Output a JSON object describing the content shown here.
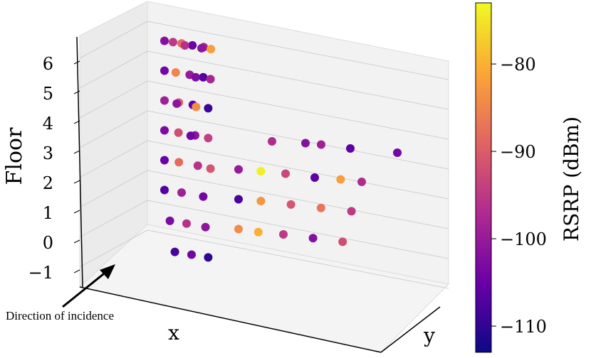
{
  "chart_data": {
    "type": "scatter",
    "projection": "3d",
    "xlabel": "x",
    "ylabel": "y",
    "zlabel": "Floor",
    "z_ticks": [
      "6",
      "5",
      "4",
      "3",
      "2",
      "1",
      "0",
      "−1"
    ],
    "zlim": [
      -1,
      6
    ],
    "grid": true,
    "colorbar": {
      "label": "RSRP (dBm)",
      "ticks": [
        "−80",
        "−90",
        "−100",
        "−110"
      ],
      "tick_values": [
        -80,
        -90,
        -100,
        -110
      ],
      "range": [
        -113,
        -73
      ],
      "colormap": "plasma",
      "colors": [
        "#0d0887",
        "#6a00a8",
        "#b12a90",
        "#e16462",
        "#fca636",
        "#f0f921"
      ]
    },
    "annotation": {
      "text": "Direction of incidence",
      "arrow": "points toward the plot origin from lower-left"
    },
    "series_note": "points are RSRP measurements; color encodes RSRP; helical ring structure on the left (stairwell) and corridor tracks on floors 1-3",
    "points": [
      {
        "floor": 6,
        "x": 0.1,
        "y": 0.05,
        "rsrp": -102
      },
      {
        "floor": 6,
        "x": 0.13,
        "y": 0.06,
        "rsrp": -95
      },
      {
        "floor": 6,
        "x": 0.16,
        "y": 0.07,
        "rsrp": -88
      },
      {
        "floor": 6,
        "x": 0.2,
        "y": 0.07,
        "rsrp": -105
      },
      {
        "floor": 6,
        "x": 0.24,
        "y": 0.08,
        "rsrp": -99
      },
      {
        "floor": 6,
        "x": 0.27,
        "y": 0.06,
        "rsrp": -82
      },
      {
        "floor": 6,
        "x": 0.24,
        "y": 0.03,
        "rsrp": -101
      },
      {
        "floor": 6,
        "x": 0.18,
        "y": 0.02,
        "rsrp": -96
      },
      {
        "floor": 5,
        "x": 0.1,
        "y": 0.05,
        "rsrp": -104
      },
      {
        "floor": 5,
        "x": 0.14,
        "y": 0.06,
        "rsrp": -85
      },
      {
        "floor": 5,
        "x": 0.19,
        "y": 0.07,
        "rsrp": -100
      },
      {
        "floor": 5,
        "x": 0.24,
        "y": 0.07,
        "rsrp": -107
      },
      {
        "floor": 5,
        "x": 0.27,
        "y": 0.05,
        "rsrp": -98
      },
      {
        "floor": 5,
        "x": 0.22,
        "y": 0.02,
        "rsrp": -103
      },
      {
        "floor": 4,
        "x": 0.1,
        "y": 0.05,
        "rsrp": -99
      },
      {
        "floor": 4,
        "x": 0.15,
        "y": 0.07,
        "rsrp": -90
      },
      {
        "floor": 4,
        "x": 0.2,
        "y": 0.08,
        "rsrp": -106
      },
      {
        "floor": 4,
        "x": 0.26,
        "y": 0.06,
        "rsrp": -109
      },
      {
        "floor": 4,
        "x": 0.22,
        "y": 0.03,
        "rsrp": -84
      },
      {
        "floor": 4,
        "x": 0.15,
        "y": 0.02,
        "rsrp": -101
      },
      {
        "floor": 3,
        "x": 0.1,
        "y": 0.05,
        "rsrp": -103
      },
      {
        "floor": 3,
        "x": 0.15,
        "y": 0.06,
        "rsrp": -92
      },
      {
        "floor": 3,
        "x": 0.21,
        "y": 0.07,
        "rsrp": -101
      },
      {
        "floor": 3,
        "x": 0.26,
        "y": 0.06,
        "rsrp": -94
      },
      {
        "floor": 3,
        "x": 0.2,
        "y": 0.03,
        "rsrp": -104
      },
      {
        "floor": 3,
        "x": 0.45,
        "y": 0.35,
        "rsrp": -97
      },
      {
        "floor": 3,
        "x": 0.55,
        "y": 0.5,
        "rsrp": -102
      },
      {
        "floor": 3,
        "x": 0.6,
        "y": 0.55,
        "rsrp": -99
      },
      {
        "floor": 3,
        "x": 0.7,
        "y": 0.6,
        "rsrp": -106
      },
      {
        "floor": 3,
        "x": 0.85,
        "y": 0.75,
        "rsrp": -104
      },
      {
        "floor": 2,
        "x": 0.1,
        "y": 0.05,
        "rsrp": -105
      },
      {
        "floor": 2,
        "x": 0.15,
        "y": 0.07,
        "rsrp": -88
      },
      {
        "floor": 2,
        "x": 0.22,
        "y": 0.07,
        "rsrp": -96
      },
      {
        "floor": 2,
        "x": 0.27,
        "y": 0.05,
        "rsrp": -91
      },
      {
        "floor": 2,
        "x": 0.35,
        "y": 0.2,
        "rsrp": -100
      },
      {
        "floor": 2,
        "x": 0.42,
        "y": 0.28,
        "rsrp": -74
      },
      {
        "floor": 2,
        "x": 0.5,
        "y": 0.35,
        "rsrp": -93
      },
      {
        "floor": 2,
        "x": 0.6,
        "y": 0.4,
        "rsrp": -106
      },
      {
        "floor": 2,
        "x": 0.68,
        "y": 0.5,
        "rsrp": -82
      },
      {
        "floor": 2,
        "x": 0.75,
        "y": 0.55,
        "rsrp": -97
      },
      {
        "floor": 1,
        "x": 0.1,
        "y": 0.05,
        "rsrp": -107
      },
      {
        "floor": 1,
        "x": 0.16,
        "y": 0.07,
        "rsrp": -99
      },
      {
        "floor": 1,
        "x": 0.24,
        "y": 0.07,
        "rsrp": -104
      },
      {
        "floor": 1,
        "x": 0.35,
        "y": 0.2,
        "rsrp": -108
      },
      {
        "floor": 1,
        "x": 0.42,
        "y": 0.28,
        "rsrp": -83
      },
      {
        "floor": 1,
        "x": 0.52,
        "y": 0.35,
        "rsrp": -91
      },
      {
        "floor": 1,
        "x": 0.62,
        "y": 0.42,
        "rsrp": -87
      },
      {
        "floor": 1,
        "x": 0.72,
        "y": 0.5,
        "rsrp": -95
      },
      {
        "floor": 0,
        "x": 0.12,
        "y": 0.05,
        "rsrp": -103
      },
      {
        "floor": 0,
        "x": 0.18,
        "y": 0.06,
        "rsrp": -96
      },
      {
        "floor": 0,
        "x": 0.25,
        "y": 0.06,
        "rsrp": -101
      },
      {
        "floor": 0,
        "x": 0.35,
        "y": 0.2,
        "rsrp": -84
      },
      {
        "floor": 0,
        "x": 0.42,
        "y": 0.22,
        "rsrp": -80
      },
      {
        "floor": 0,
        "x": 0.5,
        "y": 0.3,
        "rsrp": -95
      },
      {
        "floor": 0,
        "x": 0.6,
        "y": 0.36,
        "rsrp": -102
      },
      {
        "floor": 0,
        "x": 0.7,
        "y": 0.42,
        "rsrp": -92
      },
      {
        "floor": -1,
        "x": 0.14,
        "y": 0.04,
        "rsrp": -108
      },
      {
        "floor": -1,
        "x": 0.2,
        "y": 0.05,
        "rsrp": -104
      },
      {
        "floor": -1,
        "x": 0.26,
        "y": 0.06,
        "rsrp": -110
      }
    ]
  }
}
